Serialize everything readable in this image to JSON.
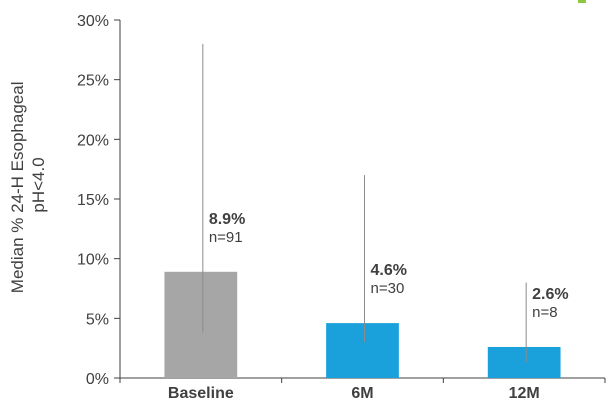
{
  "chart_data": {
    "type": "bar",
    "categories": [
      "Baseline",
      "6M",
      "12M"
    ],
    "values": [
      8.9,
      4.6,
      2.6
    ],
    "value_labels": [
      "8.9%",
      "4.6%",
      "2.6%"
    ],
    "n_labels": [
      "n=91",
      "n=30",
      "n=8"
    ],
    "error_low": [
      3.8,
      3.0,
      1.3
    ],
    "error_high": [
      28.0,
      17.0,
      8.0
    ],
    "ylabel_lines": [
      "Median % 24-H Esophageal",
      "pH<4.0"
    ],
    "yticks": [
      0,
      5,
      10,
      15,
      20,
      25,
      30
    ],
    "ytick_labels": [
      "0%",
      "5%",
      "10%",
      "15%",
      "20%",
      "25%",
      "30%"
    ],
    "ylim": [
      0,
      30
    ],
    "grid": false,
    "colors": {
      "bars": [
        "#a6a6a6",
        "#1aa0db",
        "#1aa0db"
      ],
      "error_line": "#8c8c8c",
      "axis": "#404040",
      "title_mark": "#8dc63f"
    }
  }
}
